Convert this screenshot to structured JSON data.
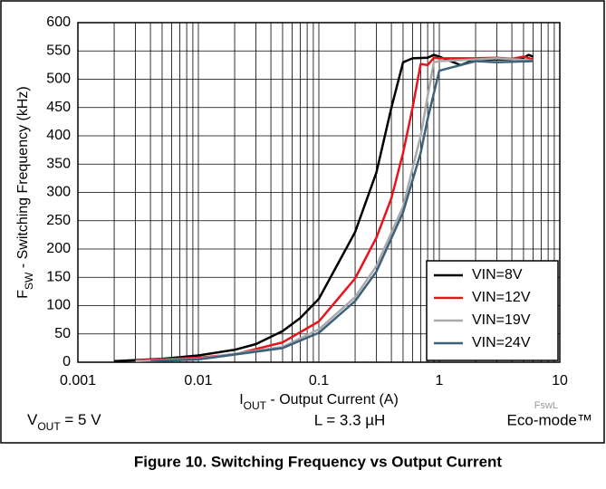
{
  "chart_data": {
    "type": "line",
    "caption": "Figure 10. Switching Frequency vs Output Current",
    "ylabel": [
      "F",
      "SW",
      " - Switching Frequency (kHz)"
    ],
    "xlabel": [
      "I",
      "OUT",
      " - Output Current (A)"
    ],
    "annotations": {
      "vout": [
        "V",
        "OUT",
        " = 5 V"
      ],
      "inductor": "L = 3.3 µH",
      "mode": "Eco-mode™",
      "figure_id": "FswL"
    },
    "xscale": "log",
    "grid": true,
    "legend": "lower right",
    "xlim": [
      0.001,
      10
    ],
    "xticks": [
      0.001,
      0.01,
      0.1,
      1,
      10
    ],
    "ylim": [
      0,
      600
    ],
    "yticks": [
      0,
      50,
      100,
      150,
      200,
      250,
      300,
      350,
      400,
      450,
      500,
      550,
      600
    ],
    "series": [
      {
        "name": "VIN=8V",
        "color": "#000000",
        "x": [
          0.002,
          0.005,
          0.01,
          0.02,
          0.03,
          0.05,
          0.07,
          0.1,
          0.2,
          0.3,
          0.4,
          0.5,
          0.6,
          0.8,
          0.9,
          1,
          1.5,
          2,
          3,
          4,
          5,
          5.5,
          6
        ],
        "values": [
          2,
          6,
          12,
          22,
          32,
          55,
          78,
          112,
          230,
          335,
          450,
          530,
          537,
          538,
          543,
          540,
          525,
          535,
          535,
          535,
          538,
          543,
          540
        ]
      },
      {
        "name": "VIN=12V",
        "color": "#e8141c",
        "x": [
          0.003,
          0.01,
          0.02,
          0.05,
          0.1,
          0.2,
          0.3,
          0.4,
          0.5,
          0.6,
          0.7,
          0.8,
          0.9,
          1,
          2,
          3,
          4,
          5,
          6
        ],
        "values": [
          3,
          8,
          14,
          35,
          72,
          148,
          220,
          290,
          370,
          450,
          527,
          525,
          538,
          537,
          537,
          538,
          536,
          540,
          535
        ]
      },
      {
        "name": "VIN=19V",
        "color": "#aaaaaa",
        "x": [
          0.003,
          0.01,
          0.05,
          0.1,
          0.2,
          0.3,
          0.5,
          0.7,
          0.8,
          0.9,
          1,
          2,
          3,
          6
        ],
        "values": [
          2,
          6,
          27,
          58,
          115,
          170,
          275,
          400,
          470,
          530,
          532,
          535,
          537,
          533
        ]
      },
      {
        "name": "VIN=24V",
        "color": "#3d6178",
        "x": [
          0.004,
          0.01,
          0.05,
          0.1,
          0.2,
          0.3,
          0.5,
          0.7,
          0.8,
          1,
          1.5,
          2,
          3,
          6
        ],
        "values": [
          2,
          5,
          25,
          52,
          108,
          160,
          265,
          370,
          430,
          515,
          525,
          532,
          530,
          532
        ]
      }
    ]
  }
}
